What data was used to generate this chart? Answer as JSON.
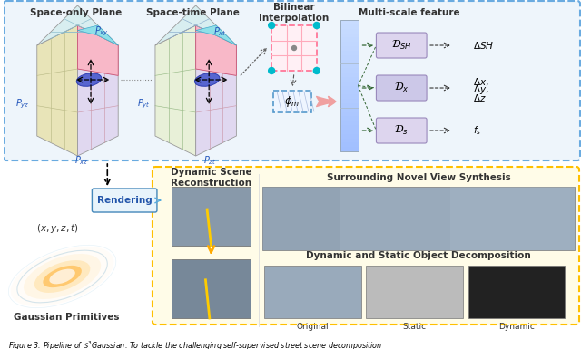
{
  "bg_color": "#ffffff",
  "space_only_title": "Space-only Plane",
  "space_time_title": "Space-time Plane",
  "bilinear_title": "Bilinear\nInterpolation",
  "multiscale_title": "Multi-scale feature",
  "rendering_label": "Rendering",
  "xyzT_label": "$(x, y, z, t)$",
  "gaussian_label": "Gaussian Primitives",
  "dynamic_title": "Dynamic Scene\nReconstruction",
  "surrounding_title": "Surrounding Novel View Synthesis",
  "decomp_title": "Dynamic and Static Object Decomposition",
  "original_label": "Original",
  "static_label": "Static",
  "dynamic_label": "Dynamic",
  "labels_phi": "$\\phi_m$",
  "D_SH": "$\\mathcal{D}_{SH}$",
  "D_x": "$\\mathcal{D}_x$",
  "D_s": "$\\mathcal{D}_s$",
  "delta_SH": "$\\Delta SH$",
  "delta_x": "$\\Delta x,$",
  "delta_y": "$\\Delta y,$",
  "delta_z": "$\\Delta z$",
  "fs": "$f_s$",
  "P_yz": "$P_{yz}$",
  "P_xy": "$P_{xy}$",
  "P_xz": "$P_{xz}$",
  "P_yt": "$P_{yt}$",
  "P_xt": "$P_{xt}$",
  "P_zt": "$P_{zt}$",
  "caption": "Figure 3: Pipeline of $S^3$Gaussian. To tackle the challenging self-supervised street scene decomposition"
}
